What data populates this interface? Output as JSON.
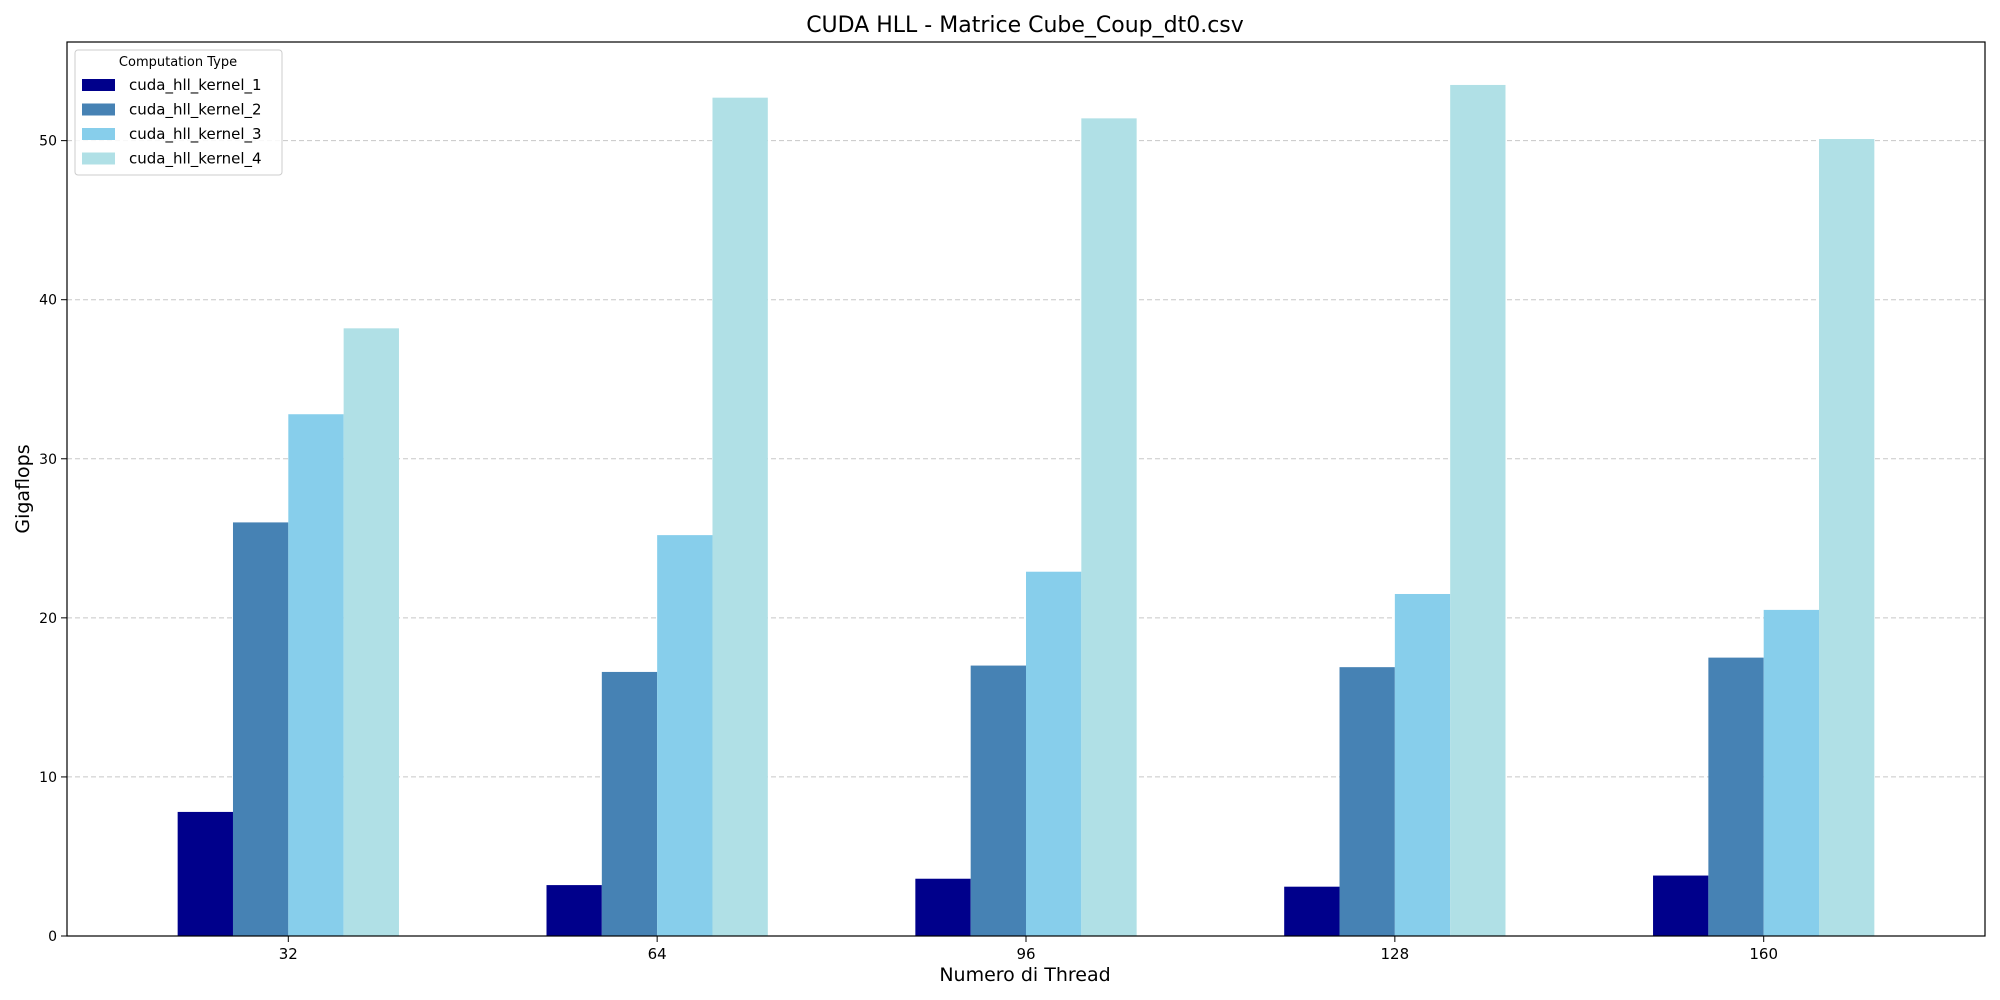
{
  "chart_data": {
    "type": "bar",
    "title": "CUDA HLL - Matrice Cube_Coup_dt0.csv",
    "xlabel": "Numero di Thread",
    "ylabel": "Gigaflops",
    "categories": [
      "32",
      "64",
      "96",
      "128",
      "160"
    ],
    "ylim": [
      0,
      56.2
    ],
    "yticks": [
      0,
      10,
      20,
      30,
      40,
      50
    ],
    "grid": "horizontal-dashed",
    "legend": {
      "title": "Computation Type",
      "placement": "top-left"
    },
    "series": [
      {
        "name": "cuda_hll_kernel_1",
        "color": "#00008b",
        "values": [
          7.8,
          3.2,
          3.6,
          3.1,
          3.8
        ]
      },
      {
        "name": "cuda_hll_kernel_2",
        "color": "#4682b4",
        "values": [
          26.0,
          16.6,
          17.0,
          16.9,
          17.5
        ]
      },
      {
        "name": "cuda_hll_kernel_3",
        "color": "#87ceeb",
        "values": [
          32.8,
          25.2,
          22.9,
          21.5,
          20.5
        ]
      },
      {
        "name": "cuda_hll_kernel_4",
        "color": "#b0e0e6",
        "values": [
          38.2,
          52.7,
          51.4,
          53.5,
          50.1
        ]
      }
    ]
  }
}
